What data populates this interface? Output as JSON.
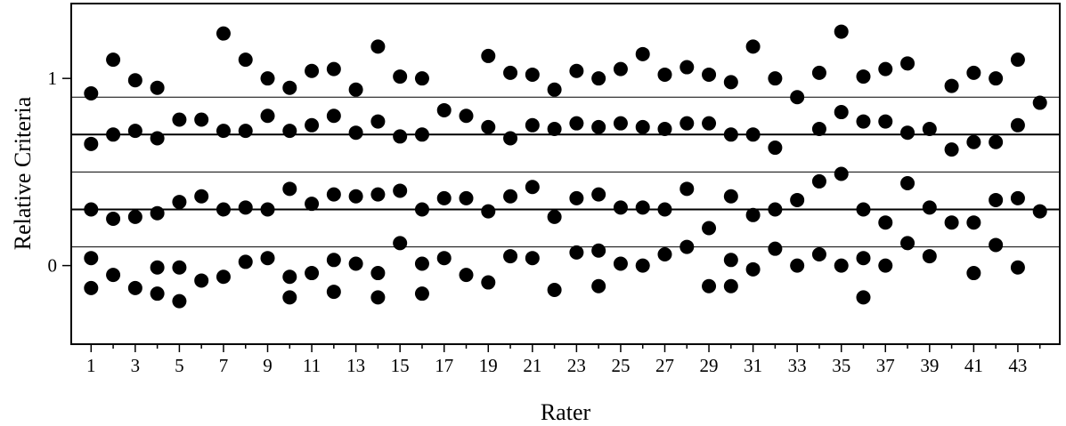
{
  "chart_data": {
    "type": "scatter",
    "title": "",
    "xlabel": "Rater",
    "ylabel": "Relative Criteria",
    "xlim": [
      0.1,
      44.9
    ],
    "ylim": [
      -0.42,
      1.4
    ],
    "x_tick_labels": [
      "1",
      "3",
      "5",
      "7",
      "9",
      "11",
      "13",
      "15",
      "17",
      "19",
      "21",
      "23",
      "25",
      "27",
      "29",
      "31",
      "33",
      "35",
      "37",
      "39",
      "41",
      "43"
    ],
    "y_tick_labels": [
      "0",
      "1"
    ],
    "reference_lines": [
      {
        "y": 0.1,
        "weight": "thin"
      },
      {
        "y": 0.3,
        "weight": "thick"
      },
      {
        "y": 0.5,
        "weight": "thin"
      },
      {
        "y": 0.7,
        "weight": "thick"
      },
      {
        "y": 0.9,
        "weight": "thin"
      }
    ],
    "grid": false,
    "marker": "filled-circle",
    "marker_color": "#000000",
    "raters": [
      {
        "rater": 1,
        "values": [
          -0.12,
          0.04,
          0.3,
          0.65,
          0.92
        ]
      },
      {
        "rater": 2,
        "values": [
          -0.05,
          0.25,
          0.7,
          1.1
        ]
      },
      {
        "rater": 3,
        "values": [
          -0.12,
          0.26,
          0.72,
          0.99
        ]
      },
      {
        "rater": 4,
        "values": [
          -0.15,
          -0.01,
          0.28,
          0.68,
          0.95
        ]
      },
      {
        "rater": 5,
        "values": [
          -0.19,
          -0.01,
          0.34,
          0.78
        ]
      },
      {
        "rater": 6,
        "values": [
          -0.08,
          0.37,
          0.78
        ]
      },
      {
        "rater": 7,
        "values": [
          -0.06,
          0.3,
          0.72,
          1.24
        ]
      },
      {
        "rater": 8,
        "values": [
          0.02,
          0.31,
          0.72,
          1.1
        ]
      },
      {
        "rater": 9,
        "values": [
          0.04,
          0.3,
          0.8,
          1.0
        ]
      },
      {
        "rater": 10,
        "values": [
          -0.17,
          -0.06,
          0.41,
          0.72,
          0.95
        ]
      },
      {
        "rater": 11,
        "values": [
          -0.04,
          0.33,
          0.75,
          1.04
        ]
      },
      {
        "rater": 12,
        "values": [
          -0.14,
          0.03,
          0.38,
          0.8,
          1.05
        ]
      },
      {
        "rater": 13,
        "values": [
          0.01,
          0.37,
          0.71,
          0.94
        ]
      },
      {
        "rater": 14,
        "values": [
          -0.17,
          -0.04,
          0.38,
          0.77,
          1.17
        ]
      },
      {
        "rater": 15,
        "values": [
          0.12,
          0.4,
          0.69,
          1.01
        ]
      },
      {
        "rater": 16,
        "values": [
          -0.15,
          0.01,
          0.3,
          0.7,
          1.0
        ]
      },
      {
        "rater": 17,
        "values": [
          0.04,
          0.36,
          0.83
        ]
      },
      {
        "rater": 18,
        "values": [
          -0.05,
          0.36,
          0.8
        ]
      },
      {
        "rater": 19,
        "values": [
          -0.09,
          0.29,
          0.74,
          1.12
        ]
      },
      {
        "rater": 20,
        "values": [
          0.05,
          0.37,
          0.68,
          1.03
        ]
      },
      {
        "rater": 21,
        "values": [
          0.04,
          0.42,
          0.75,
          1.02
        ]
      },
      {
        "rater": 22,
        "values": [
          -0.13,
          0.26,
          0.73,
          0.94
        ]
      },
      {
        "rater": 23,
        "values": [
          0.07,
          0.36,
          0.76,
          1.04
        ]
      },
      {
        "rater": 24,
        "values": [
          -0.11,
          0.08,
          0.38,
          0.74,
          1.0
        ]
      },
      {
        "rater": 25,
        "values": [
          0.01,
          0.31,
          0.76,
          1.05
        ]
      },
      {
        "rater": 26,
        "values": [
          0.0,
          0.31,
          0.74,
          1.13
        ]
      },
      {
        "rater": 27,
        "values": [
          0.06,
          0.3,
          0.73,
          1.02
        ]
      },
      {
        "rater": 28,
        "values": [
          0.1,
          0.41,
          0.76,
          1.06
        ]
      },
      {
        "rater": 29,
        "values": [
          -0.11,
          0.2,
          0.76,
          1.02
        ]
      },
      {
        "rater": 30,
        "values": [
          -0.11,
          0.03,
          0.37,
          0.7,
          0.98
        ]
      },
      {
        "rater": 31,
        "values": [
          -0.02,
          0.27,
          0.7,
          1.17
        ]
      },
      {
        "rater": 32,
        "values": [
          0.09,
          0.3,
          0.63,
          1.0
        ]
      },
      {
        "rater": 33,
        "values": [
          0.0,
          0.35,
          0.9
        ]
      },
      {
        "rater": 34,
        "values": [
          0.06,
          0.45,
          0.73,
          1.03
        ]
      },
      {
        "rater": 35,
        "values": [
          0.0,
          0.49,
          0.82,
          1.25
        ]
      },
      {
        "rater": 36,
        "values": [
          -0.17,
          0.04,
          0.3,
          0.77,
          1.01
        ]
      },
      {
        "rater": 37,
        "values": [
          0.0,
          0.23,
          0.77,
          1.05
        ]
      },
      {
        "rater": 38,
        "values": [
          0.12,
          0.44,
          0.71,
          1.08
        ]
      },
      {
        "rater": 39,
        "values": [
          0.05,
          0.31,
          0.73
        ]
      },
      {
        "rater": 40,
        "values": [
          0.23,
          0.62,
          0.96
        ]
      },
      {
        "rater": 41,
        "values": [
          -0.04,
          0.23,
          0.66,
          1.03
        ]
      },
      {
        "rater": 42,
        "values": [
          0.11,
          0.35,
          0.66,
          1.0
        ]
      },
      {
        "rater": 43,
        "values": [
          -0.01,
          0.36,
          0.75,
          1.1
        ]
      },
      {
        "rater": 44,
        "values": [
          0.29,
          0.87
        ]
      }
    ]
  }
}
